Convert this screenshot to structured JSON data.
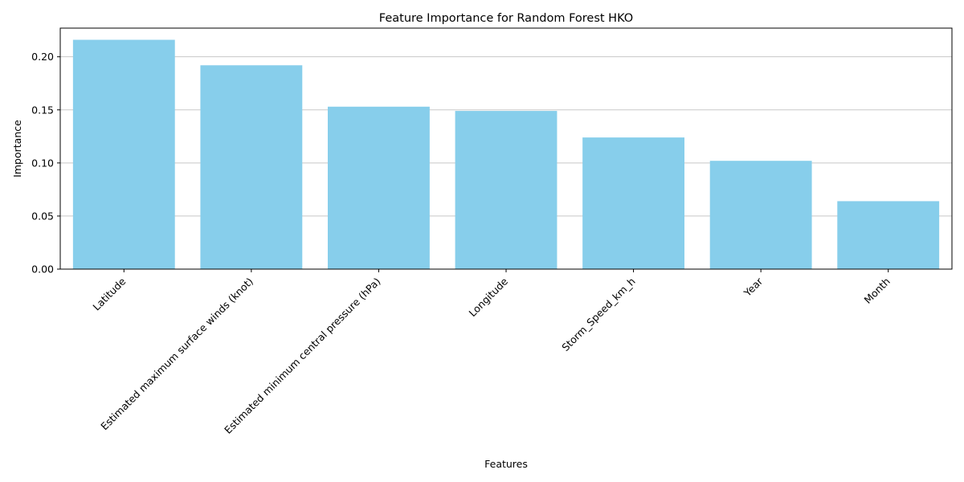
{
  "chart_data": {
    "type": "bar",
    "title": "Feature Importance for Random Forest HKO",
    "xlabel": "Features",
    "ylabel": "Importance",
    "categories": [
      "Latitude",
      "Estimated maximum surface winds (knot)",
      "Estimated minimum central pressure (hPa)",
      "Longitude",
      "Storm_Speed_km_h",
      "Year",
      "Month"
    ],
    "values": [
      0.216,
      0.192,
      0.153,
      0.149,
      0.124,
      0.102,
      0.064
    ],
    "ylim": [
      0,
      0.227
    ],
    "yticks": [
      0.0,
      0.05,
      0.1,
      0.15,
      0.2
    ],
    "ytick_labels": [
      "0.00",
      "0.05",
      "0.10",
      "0.15",
      "0.20"
    ],
    "bar_color": "#87ceeb",
    "grid": "y-axis horizontal lines",
    "legend": "none"
  }
}
